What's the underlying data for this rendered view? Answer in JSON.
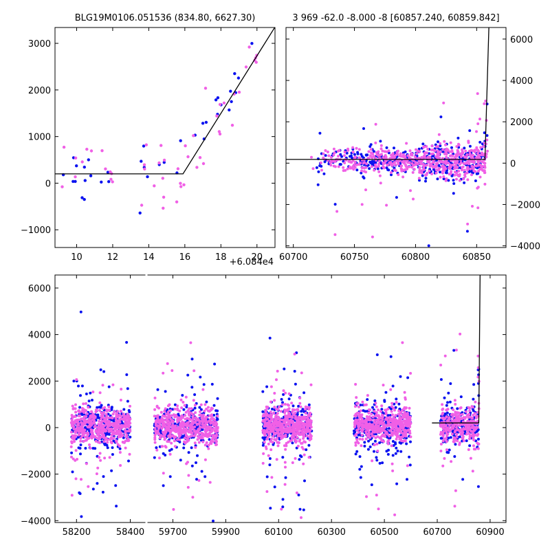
{
  "colors": {
    "blue": "#0a12f0",
    "magenta": "#f060e6",
    "model": "#000000",
    "frame": "#000000"
  },
  "chart_data": [
    {
      "id": "zoom",
      "type": "scatter",
      "title": "BLG19M0106.051536 (834.80, 6627.30)",
      "xlim": [
        8.8,
        21.0
      ],
      "ylim": [
        -1380,
        3340
      ],
      "xticks": [
        10,
        12,
        14,
        16,
        18,
        20
      ],
      "yticks": [
        -1000,
        0,
        1000,
        2000,
        3000
      ],
      "x_offset_label": "+6.084e4",
      "model_line": [
        [
          8.8,
          200
        ],
        [
          15.9,
          200
        ],
        [
          21.0,
          3350
        ]
      ]
    },
    {
      "id": "wide",
      "type": "scatter",
      "title": "3 969 -62.0 -8.000 -8 [60857.240, 60859.842]",
      "xlim": [
        60694,
        60874
      ],
      "ylim": [
        -4080,
        6560
      ],
      "xticks": [
        60700,
        60750,
        60800,
        60850
      ],
      "yticks": [
        -4000,
        -2000,
        0,
        2000,
        4000,
        6000
      ],
      "yaxis_side": "right",
      "model_line": [
        [
          60694,
          180
        ],
        [
          60856.8,
          180
        ],
        [
          60860,
          6560
        ]
      ]
    },
    {
      "id": "full",
      "type": "scatter",
      "title": "",
      "ylim": [
        -4080,
        6560
      ],
      "yticks": [
        -4000,
        -2000,
        0,
        2000,
        4000,
        6000
      ],
      "segments": [
        {
          "xlim": [
            58120,
            58460
          ],
          "xticks": [
            58200,
            58400
          ]
        },
        {
          "xlim": [
            59600,
            60960
          ],
          "xticks": [
            59700,
            59900,
            60100,
            60300,
            60500,
            60700,
            60900
          ]
        }
      ],
      "model_line": [
        [
          60680,
          200
        ],
        [
          60857,
          200
        ],
        [
          60862,
          6560
        ]
      ]
    }
  ]
}
